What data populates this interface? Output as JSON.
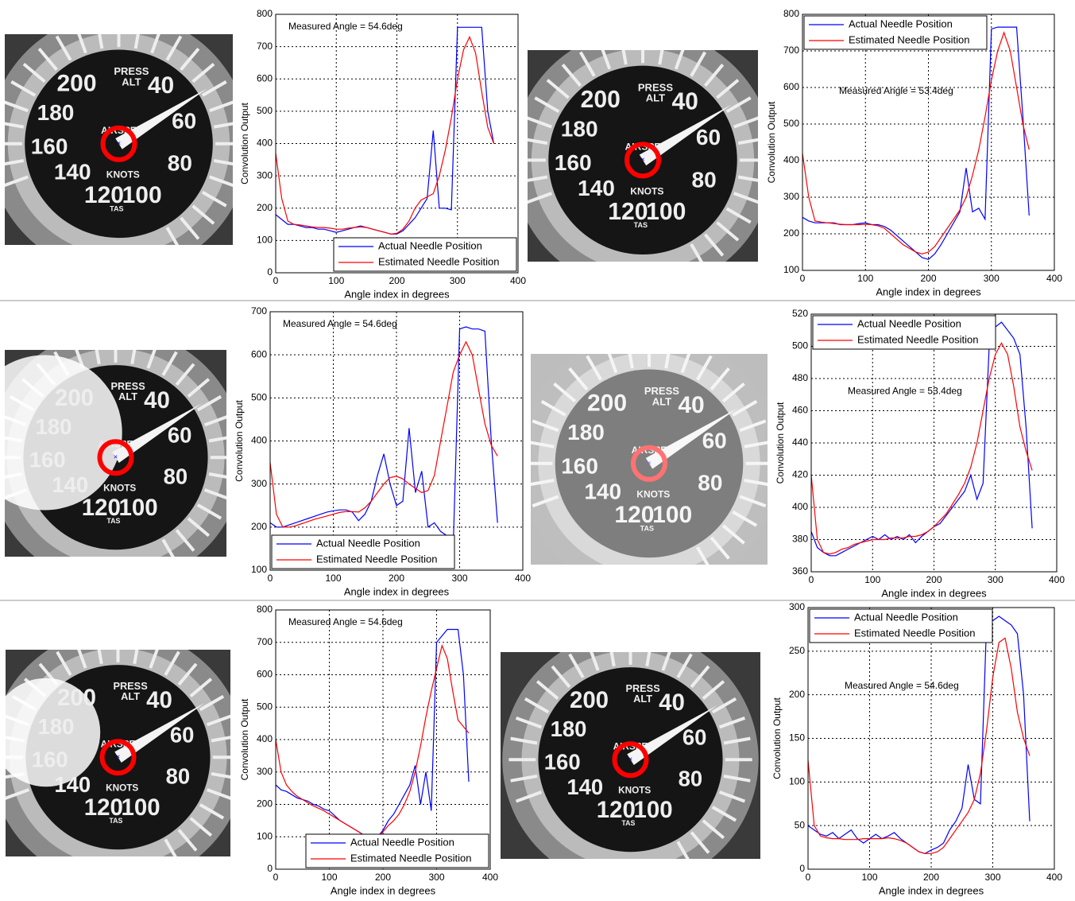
{
  "gauge": {
    "labels": [
      "200",
      "40",
      "180",
      "60",
      "160",
      "80",
      "140",
      "KNOTS",
      "120",
      "100",
      "PRESS",
      "ALT",
      "AIRSPE",
      "TAS"
    ]
  },
  "chart_data": [
    {
      "type": "line",
      "annotation": "Measured Angle = 54.6deg",
      "xlabel": "Angle index in degrees",
      "ylabel": "Convolution Output",
      "xlim": [
        0,
        400
      ],
      "xticks": [
        0,
        100,
        200,
        300,
        400
      ],
      "ylim": [
        0,
        800
      ],
      "yticks": [
        0,
        100,
        200,
        300,
        400,
        500,
        600,
        700,
        800
      ],
      "grid": true,
      "legend": "lower right",
      "x": [
        0,
        10,
        20,
        30,
        40,
        50,
        60,
        70,
        80,
        90,
        100,
        110,
        120,
        130,
        140,
        150,
        160,
        170,
        180,
        190,
        200,
        210,
        220,
        230,
        240,
        250,
        260,
        270,
        280,
        290,
        300,
        310,
        320,
        330,
        340,
        350,
        360
      ],
      "series": [
        {
          "name": "Actual Needle Position",
          "color": "#0000ff",
          "values": [
            180,
            165,
            150,
            150,
            145,
            140,
            140,
            135,
            135,
            130,
            125,
            130,
            135,
            140,
            145,
            140,
            135,
            130,
            125,
            120,
            120,
            130,
            150,
            170,
            200,
            230,
            440,
            200,
            200,
            195,
            760,
            760,
            760,
            760,
            760,
            500,
            400
          ]
        },
        {
          "name": "Estimated Needle Position",
          "color": "#ff0000",
          "values": [
            370,
            230,
            160,
            150,
            148,
            145,
            142,
            140,
            140,
            138,
            135,
            135,
            138,
            140,
            142,
            140,
            135,
            130,
            125,
            120,
            122,
            135,
            160,
            200,
            225,
            235,
            245,
            300,
            380,
            480,
            600,
            690,
            730,
            680,
            560,
            450,
            400
          ]
        }
      ]
    },
    {
      "type": "line",
      "annotation": "Measured Angle = 53.4deg",
      "xlabel": "Angle index in degrees",
      "ylabel": "Convolution Output",
      "xlim": [
        0,
        400
      ],
      "xticks": [
        0,
        100,
        200,
        300,
        400
      ],
      "ylim": [
        100,
        800
      ],
      "yticks": [
        100,
        200,
        300,
        400,
        500,
        600,
        700,
        800
      ],
      "grid": true,
      "legend": "upper left",
      "x": [
        0,
        10,
        20,
        30,
        40,
        50,
        60,
        70,
        80,
        90,
        100,
        110,
        120,
        130,
        140,
        150,
        160,
        170,
        180,
        190,
        200,
        210,
        220,
        230,
        240,
        250,
        260,
        270,
        280,
        290,
        300,
        310,
        320,
        330,
        340,
        350,
        360
      ],
      "series": [
        {
          "name": "Actual Needle Position",
          "color": "#0000ff",
          "values": [
            245,
            235,
            230,
            230,
            230,
            230,
            225,
            225,
            225,
            228,
            230,
            225,
            225,
            220,
            210,
            195,
            180,
            165,
            150,
            135,
            130,
            145,
            170,
            200,
            230,
            260,
            380,
            260,
            270,
            240,
            760,
            765,
            765,
            765,
            765,
            520,
            250
          ]
        },
        {
          "name": "Estimated Needle Position",
          "color": "#ff0000",
          "values": [
            420,
            300,
            235,
            232,
            230,
            228,
            226,
            225,
            225,
            225,
            226,
            225,
            222,
            215,
            200,
            185,
            170,
            160,
            150,
            145,
            150,
            165,
            190,
            215,
            240,
            265,
            300,
            360,
            430,
            520,
            620,
            700,
            750,
            700,
            600,
            500,
            430
          ]
        }
      ]
    },
    {
      "type": "line",
      "annotation": "Measured Angle = 54.6deg",
      "xlabel": "Angle index in degrees",
      "ylabel": "Convolution Output",
      "xlim": [
        0,
        400
      ],
      "xticks": [
        0,
        100,
        200,
        300,
        400
      ],
      "ylim": [
        100,
        700
      ],
      "yticks": [
        100,
        200,
        300,
        400,
        500,
        600,
        700
      ],
      "grid": true,
      "legend": "lower left",
      "x": [
        0,
        10,
        20,
        30,
        40,
        50,
        60,
        70,
        80,
        90,
        100,
        110,
        120,
        130,
        140,
        150,
        160,
        170,
        180,
        190,
        200,
        210,
        220,
        230,
        240,
        250,
        260,
        270,
        280,
        290,
        300,
        310,
        320,
        330,
        340,
        350,
        360
      ],
      "series": [
        {
          "name": "Actual Needle Position",
          "color": "#0000ff",
          "values": [
            210,
            200,
            200,
            205,
            210,
            215,
            220,
            225,
            230,
            235,
            238,
            240,
            240,
            235,
            215,
            230,
            260,
            320,
            370,
            300,
            250,
            260,
            430,
            280,
            330,
            200,
            210,
            190,
            180,
            160,
            660,
            665,
            660,
            660,
            655,
            400,
            210
          ]
        },
        {
          "name": "Estimated Needle Position",
          "color": "#ff0000",
          "values": [
            350,
            230,
            200,
            200,
            203,
            208,
            213,
            218,
            222,
            226,
            230,
            234,
            236,
            236,
            235,
            245,
            260,
            280,
            300,
            315,
            318,
            312,
            300,
            290,
            280,
            285,
            320,
            400,
            480,
            560,
            600,
            630,
            600,
            520,
            440,
            390,
            365
          ]
        }
      ]
    },
    {
      "type": "line",
      "annotation": "Measured Angle = 53.4deg",
      "xlabel": "Angle index in degrees",
      "ylabel": "Convolution Output",
      "xlim": [
        0,
        400
      ],
      "xticks": [
        0,
        100,
        200,
        300,
        400
      ],
      "ylim": [
        360,
        520
      ],
      "yticks": [
        360,
        380,
        400,
        420,
        440,
        460,
        480,
        500,
        520
      ],
      "grid": true,
      "legend": "upper left",
      "x": [
        0,
        10,
        20,
        30,
        40,
        50,
        60,
        70,
        80,
        90,
        100,
        110,
        120,
        130,
        140,
        150,
        160,
        170,
        180,
        190,
        200,
        210,
        220,
        230,
        240,
        250,
        260,
        270,
        280,
        290,
        300,
        310,
        320,
        330,
        340,
        350,
        360
      ],
      "series": [
        {
          "name": "Actual Needle Position",
          "color": "#0000ff",
          "values": [
            385,
            375,
            372,
            370,
            370,
            372,
            374,
            376,
            378,
            380,
            382,
            380,
            383,
            380,
            382,
            380,
            383,
            378,
            382,
            385,
            388,
            390,
            395,
            400,
            405,
            410,
            420,
            405,
            415,
            500,
            512,
            515,
            510,
            505,
            495,
            450,
            387
          ]
        },
        {
          "name": "Estimated Needle Position",
          "color": "#ff0000",
          "values": [
            420,
            380,
            372,
            371,
            372,
            374,
            375,
            377,
            378,
            379,
            380,
            380,
            380,
            381,
            381,
            381,
            382,
            382,
            383,
            385,
            388,
            392,
            396,
            402,
            408,
            415,
            425,
            440,
            460,
            480,
            495,
            502,
            495,
            475,
            450,
            435,
            423
          ]
        }
      ]
    },
    {
      "type": "line",
      "annotation": "Measured Angle = 54.6deg",
      "xlabel": "Angle index in degrees",
      "ylabel": "Convolution Output",
      "xlim": [
        0,
        400
      ],
      "xticks": [
        0,
        100,
        200,
        300,
        400
      ],
      "ylim": [
        0,
        800
      ],
      "yticks": [
        0,
        100,
        200,
        300,
        400,
        500,
        600,
        700,
        800
      ],
      "grid": true,
      "legend": "lower right",
      "x": [
        0,
        10,
        20,
        30,
        40,
        50,
        60,
        70,
        80,
        90,
        100,
        110,
        120,
        130,
        140,
        150,
        160,
        170,
        180,
        190,
        200,
        210,
        220,
        230,
        240,
        250,
        260,
        270,
        280,
        290,
        300,
        310,
        320,
        330,
        340,
        350,
        360
      ],
      "series": [
        {
          "name": "Actual Needle Position",
          "color": "#0000ff",
          "values": [
            260,
            245,
            240,
            230,
            220,
            215,
            210,
            200,
            195,
            185,
            180,
            165,
            150,
            140,
            130,
            120,
            110,
            100,
            105,
            100,
            120,
            150,
            170,
            200,
            230,
            260,
            320,
            200,
            300,
            180,
            700,
            720,
            740,
            740,
            740,
            600,
            270
          ]
        },
        {
          "name": "Estimated Needle Position",
          "color": "#ff0000",
          "values": [
            400,
            300,
            260,
            240,
            225,
            215,
            205,
            195,
            188,
            180,
            170,
            160,
            150,
            140,
            130,
            120,
            110,
            100,
            95,
            100,
            115,
            135,
            150,
            170,
            200,
            240,
            300,
            380,
            470,
            550,
            620,
            690,
            650,
            550,
            460,
            440,
            420
          ]
        }
      ]
    },
    {
      "type": "line",
      "annotation": "Measured Angle = 54.6deg",
      "xlabel": "Angle index in degrees",
      "ylabel": "Convolution Output",
      "xlim": [
        0,
        400
      ],
      "xticks": [
        0,
        100,
        200,
        300,
        400
      ],
      "ylim": [
        0,
        300
      ],
      "yticks": [
        0,
        50,
        100,
        150,
        200,
        250,
        300
      ],
      "grid": true,
      "legend": "upper left",
      "x": [
        0,
        10,
        20,
        30,
        40,
        50,
        60,
        70,
        80,
        90,
        100,
        110,
        120,
        130,
        140,
        150,
        160,
        170,
        180,
        190,
        200,
        210,
        220,
        230,
        240,
        250,
        260,
        270,
        280,
        290,
        300,
        310,
        320,
        330,
        340,
        350,
        360
      ],
      "series": [
        {
          "name": "Actual Needle Position",
          "color": "#0000ff",
          "values": [
            50,
            45,
            40,
            38,
            42,
            35,
            40,
            45,
            35,
            30,
            35,
            40,
            35,
            38,
            42,
            35,
            30,
            25,
            20,
            18,
            22,
            25,
            30,
            45,
            55,
            70,
            120,
            80,
            75,
            285,
            285,
            290,
            285,
            280,
            270,
            200,
            55
          ]
        },
        {
          "name": "Estimated Needle Position",
          "color": "#ff0000",
          "values": [
            125,
            50,
            38,
            36,
            35,
            35,
            34,
            34,
            34,
            35,
            35,
            35,
            35,
            36,
            35,
            33,
            30,
            25,
            20,
            18,
            18,
            20,
            25,
            35,
            45,
            55,
            65,
            80,
            110,
            160,
            220,
            260,
            265,
            230,
            180,
            150,
            130
          ]
        }
      ]
    }
  ]
}
